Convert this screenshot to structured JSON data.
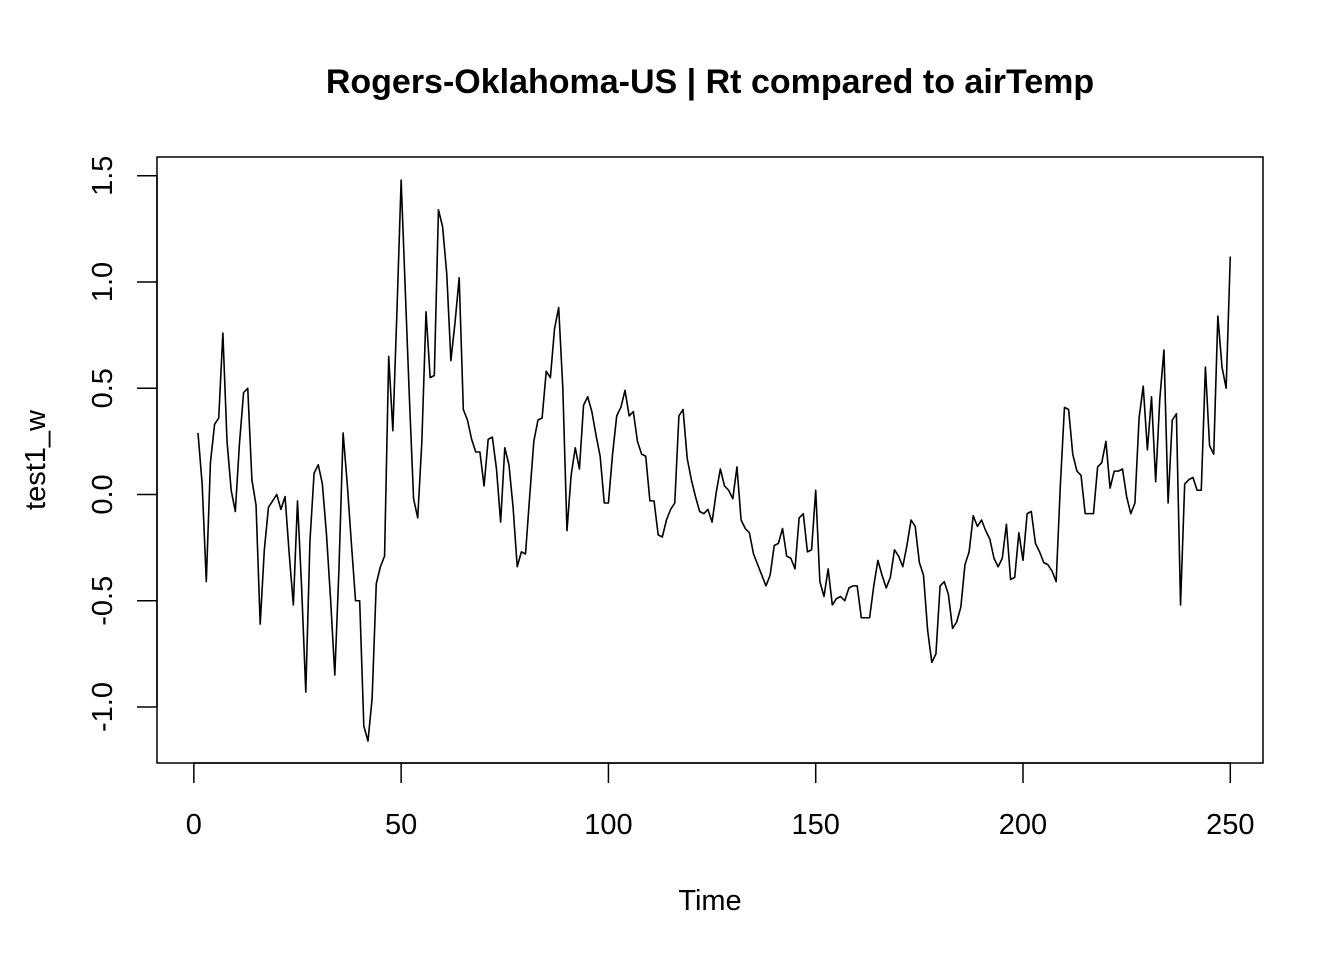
{
  "chart_data": {
    "type": "line",
    "title": "Rogers-Oklahoma-US | Rt compared to airTemp",
    "xlabel": "Time",
    "ylabel": "test1_w",
    "xlim": [
      1,
      248
    ],
    "ylim": [
      -1.16,
      1.48
    ],
    "x_ticks": [
      0,
      50,
      100,
      150,
      200,
      250
    ],
    "x_tick_labels": [
      "0",
      "50",
      "100",
      "150",
      "200",
      "250"
    ],
    "y_ticks": [
      -1.0,
      -0.5,
      0.0,
      0.5,
      1.0,
      1.5
    ],
    "y_tick_labels": [
      "-1.0",
      "-0.5",
      "0.0",
      "0.5",
      "1.0",
      "1.5"
    ],
    "grid": false,
    "legend": "none",
    "line_color": "#000000",
    "series": [
      {
        "x_start": 1,
        "x_step": 1,
        "values": [
          0.29,
          0.05,
          -0.41,
          0.15,
          0.33,
          0.36,
          0.76,
          0.25,
          0.02,
          -0.08,
          0.24,
          0.48,
          0.5,
          0.07,
          -0.05,
          -0.61,
          -0.26,
          -0.06,
          -0.03,
          0.0,
          -0.07,
          -0.01,
          -0.28,
          -0.52,
          -0.03,
          -0.44,
          -0.93,
          -0.22,
          0.1,
          0.14,
          0.05,
          -0.19,
          -0.5,
          -0.85,
          -0.35,
          0.29,
          0.05,
          -0.23,
          -0.5,
          -0.5,
          -1.09,
          -1.16,
          -0.96,
          -0.42,
          -0.34,
          -0.29,
          0.65,
          0.3,
          0.87,
          1.48,
          0.96,
          0.45,
          -0.02,
          -0.11,
          0.25,
          0.86,
          0.55,
          0.56,
          1.34,
          1.26,
          1.04,
          0.63,
          0.81,
          1.02,
          0.4,
          0.35,
          0.26,
          0.2,
          0.2,
          0.04,
          0.26,
          0.27,
          0.12,
          -0.13,
          0.22,
          0.14,
          -0.06,
          -0.34,
          -0.27,
          -0.28,
          -0.01,
          0.25,
          0.35,
          0.36,
          0.58,
          0.55,
          0.78,
          0.88,
          0.5,
          -0.17,
          0.09,
          0.22,
          0.12,
          0.42,
          0.46,
          0.39,
          0.28,
          0.18,
          -0.04,
          -0.04,
          0.19,
          0.37,
          0.41,
          0.49,
          0.37,
          0.39,
          0.25,
          0.19,
          0.18,
          -0.03,
          -0.03,
          -0.19,
          -0.2,
          -0.12,
          -0.07,
          -0.04,
          0.37,
          0.4,
          0.17,
          0.07,
          -0.01,
          -0.08,
          -0.09,
          -0.07,
          -0.13,
          0.01,
          0.12,
          0.04,
          0.02,
          -0.02,
          0.13,
          -0.12,
          -0.16,
          -0.18,
          -0.28,
          -0.33,
          -0.38,
          -0.43,
          -0.38,
          -0.24,
          -0.23,
          -0.16,
          -0.29,
          -0.3,
          -0.35,
          -0.11,
          -0.09,
          -0.27,
          -0.26,
          0.02,
          -0.41,
          -0.48,
          -0.35,
          -0.52,
          -0.49,
          -0.48,
          -0.5,
          -0.44,
          -0.43,
          -0.43,
          -0.58,
          -0.58,
          -0.58,
          -0.43,
          -0.31,
          -0.38,
          -0.44,
          -0.39,
          -0.26,
          -0.29,
          -0.34,
          -0.24,
          -0.12,
          -0.15,
          -0.32,
          -0.38,
          -0.64,
          -0.79,
          -0.75,
          -0.43,
          -0.41,
          -0.47,
          -0.63,
          -0.6,
          -0.53,
          -0.33,
          -0.27,
          -0.1,
          -0.15,
          -0.12,
          -0.17,
          -0.21,
          -0.3,
          -0.34,
          -0.3,
          -0.14,
          -0.4,
          -0.39,
          -0.18,
          -0.31,
          -0.09,
          -0.08,
          -0.23,
          -0.27,
          -0.32,
          -0.33,
          -0.36,
          -0.41,
          0.04,
          0.41,
          0.4,
          0.19,
          0.11,
          0.09,
          -0.09,
          -0.09,
          -0.09,
          0.13,
          0.15,
          0.25,
          0.03,
          0.11,
          0.11,
          0.12,
          -0.01,
          -0.09,
          -0.04,
          0.36,
          0.51,
          0.21,
          0.46,
          0.06,
          0.45,
          0.68,
          -0.04,
          0.35,
          0.38,
          -0.52,
          0.05,
          0.07,
          0.08,
          0.02,
          0.02,
          0.6,
          0.23,
          0.19,
          0.84,
          0.6,
          0.5,
          1.12
        ]
      }
    ]
  }
}
